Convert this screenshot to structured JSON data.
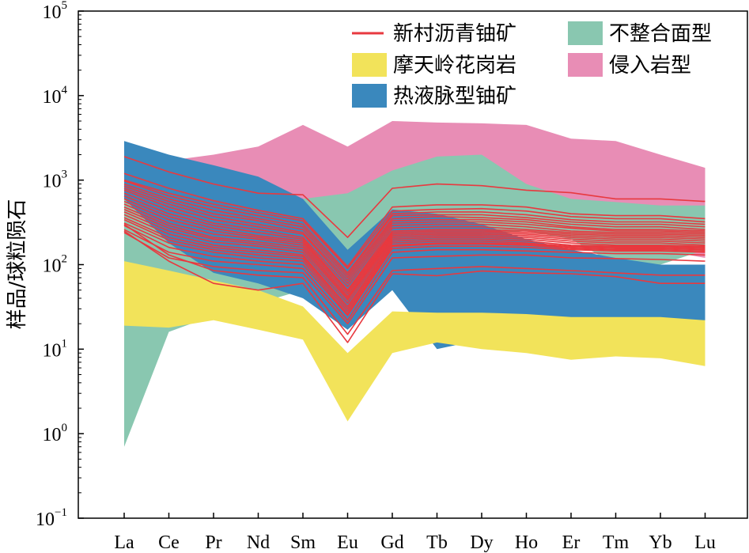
{
  "chart_data": {
    "type": "line",
    "title": "",
    "xlabel": "",
    "ylabel": "样品/球粒陨石",
    "yscale": "log",
    "ylim": [
      0.1,
      100000
    ],
    "y_ticks": [
      {
        "value": 0.1,
        "base": "10",
        "exp": "−1"
      },
      {
        "value": 1,
        "base": "10",
        "exp": "0"
      },
      {
        "value": 10,
        "base": "10",
        "exp": "1"
      },
      {
        "value": 100,
        "base": "10",
        "exp": "2"
      },
      {
        "value": 1000,
        "base": "10",
        "exp": "3"
      },
      {
        "value": 10000,
        "base": "10",
        "exp": "4"
      },
      {
        "value": 100000,
        "base": "10",
        "exp": "5"
      }
    ],
    "categories": [
      "La",
      "Ce",
      "Pr",
      "Nd",
      "Sm",
      "Eu",
      "Gd",
      "Tb",
      "Dy",
      "Ho",
      "Er",
      "Tm",
      "Yb",
      "Lu"
    ],
    "grid": false,
    "legend_position": "top-right",
    "legend": [
      {
        "key": "xincun",
        "label": "新村沥青铀矿",
        "kind": "line",
        "color": "#e8393f"
      },
      {
        "key": "unconf",
        "label": "不整合面型",
        "kind": "band",
        "color": "#89c7b0"
      },
      {
        "key": "motian",
        "label": "摩天岭花岗岩",
        "kind": "band",
        "color": "#f2e35a"
      },
      {
        "key": "intrusion",
        "label": "侵入岩型",
        "kind": "band",
        "color": "#e88db5"
      },
      {
        "key": "hydro",
        "label": "热液脉型铀矿",
        "kind": "band",
        "color": "#3a88bd"
      }
    ],
    "bands": [
      {
        "key": "intrusion",
        "color": "#e88db5",
        "upper": [
          1900,
          1700,
          2000,
          2500,
          4500,
          2500,
          5000,
          4800,
          4700,
          4500,
          3100,
          2900,
          2000,
          1400
        ],
        "lower": [
          190,
          250,
          300,
          350,
          400,
          300,
          600,
          600,
          400,
          350,
          250,
          200,
          150,
          120
        ]
      },
      {
        "key": "unconf",
        "color": "#89c7b0",
        "upper": [
          1000,
          700,
          700,
          650,
          600,
          700,
          1300,
          1900,
          2000,
          900,
          600,
          550,
          500,
          500
        ],
        "lower": [
          0.7,
          16,
          25,
          35,
          50,
          70,
          100,
          150,
          220,
          250,
          200,
          100,
          100,
          150
        ]
      },
      {
        "key": "hydro",
        "color": "#3a88bd",
        "upper": [
          2900,
          2000,
          1500,
          1100,
          600,
          150,
          450,
          400,
          300,
          200,
          150,
          120,
          100,
          100
        ],
        "lower": [
          600,
          180,
          80,
          60,
          40,
          17,
          50,
          10,
          13,
          15,
          20,
          20,
          20,
          20
        ]
      },
      {
        "key": "motian",
        "color": "#f2e35a",
        "upper": [
          110,
          85,
          65,
          50,
          32,
          9,
          28,
          27,
          27,
          26,
          24,
          24,
          24,
          22
        ],
        "lower": [
          19,
          18,
          22,
          17,
          13,
          1.4,
          9,
          12,
          10,
          9,
          7.5,
          8.2,
          7.8,
          6.3
        ]
      }
    ],
    "series": [
      {
        "values": [
          1900,
          1250,
          900,
          700,
          670,
          210,
          800,
          900,
          860,
          760,
          710,
          600,
          600,
          560
        ]
      },
      {
        "values": [
          1200,
          800,
          570,
          440,
          350,
          95,
          480,
          510,
          510,
          480,
          400,
          380,
          380,
          350
        ]
      },
      {
        "values": [
          1000,
          700,
          520,
          410,
          330,
          90,
          430,
          450,
          460,
          430,
          370,
          350,
          350,
          320
        ]
      },
      {
        "values": [
          980,
          650,
          480,
          380,
          300,
          80,
          400,
          420,
          420,
          390,
          340,
          320,
          320,
          300
        ]
      },
      {
        "values": [
          900,
          600,
          440,
          350,
          280,
          75,
          380,
          390,
          390,
          360,
          320,
          300,
          300,
          280
        ]
      },
      {
        "values": [
          850,
          560,
          400,
          330,
          260,
          70,
          350,
          370,
          360,
          340,
          300,
          280,
          280,
          260
        ]
      },
      {
        "values": [
          800,
          520,
          370,
          300,
          240,
          65,
          330,
          340,
          340,
          320,
          280,
          260,
          260,
          250
        ]
      },
      {
        "values": [
          760,
          480,
          340,
          280,
          230,
          60,
          310,
          320,
          320,
          300,
          270,
          250,
          250,
          240
        ]
      },
      {
        "values": [
          700,
          440,
          310,
          260,
          210,
          55,
          290,
          300,
          300,
          280,
          250,
          240,
          240,
          230
        ]
      },
      {
        "values": [
          650,
          400,
          290,
          240,
          200,
          50,
          270,
          280,
          280,
          260,
          240,
          230,
          230,
          220
        ]
      },
      {
        "values": [
          600,
          370,
          270,
          220,
          190,
          48,
          250,
          260,
          260,
          250,
          230,
          220,
          220,
          210
        ]
      },
      {
        "values": [
          560,
          340,
          250,
          210,
          180,
          45,
          240,
          250,
          250,
          240,
          220,
          210,
          210,
          200
        ]
      },
      {
        "values": [
          520,
          310,
          230,
          200,
          170,
          42,
          230,
          240,
          240,
          230,
          210,
          200,
          200,
          190
        ]
      },
      {
        "values": [
          480,
          290,
          210,
          185,
          160,
          40,
          220,
          230,
          230,
          220,
          200,
          190,
          190,
          180
        ]
      },
      {
        "values": [
          450,
          270,
          200,
          175,
          150,
          38,
          210,
          220,
          220,
          210,
          190,
          180,
          180,
          170
        ]
      },
      {
        "values": [
          420,
          250,
          185,
          165,
          140,
          35,
          200,
          210,
          210,
          200,
          180,
          170,
          170,
          165
        ]
      },
      {
        "values": [
          390,
          230,
          170,
          150,
          130,
          32,
          190,
          200,
          200,
          190,
          170,
          165,
          165,
          160
        ]
      },
      {
        "values": [
          360,
          210,
          160,
          140,
          125,
          30,
          180,
          190,
          190,
          180,
          165,
          160,
          160,
          155
        ]
      },
      {
        "values": [
          340,
          195,
          150,
          130,
          118,
          28,
          170,
          180,
          180,
          175,
          160,
          155,
          155,
          150
        ]
      },
      {
        "values": [
          310,
          180,
          140,
          120,
          110,
          26,
          165,
          175,
          175,
          170,
          155,
          150,
          150,
          145
        ]
      },
      {
        "values": [
          290,
          160,
          125,
          110,
          100,
          25,
          155,
          165,
          165,
          160,
          150,
          145,
          145,
          140
        ]
      },
      {
        "values": [
          260,
          140,
          110,
          100,
          90,
          22,
          140,
          150,
          150,
          145,
          140,
          135,
          135,
          130
        ]
      },
      {
        "values": [
          240,
          120,
          95,
          85,
          80,
          20,
          120,
          125,
          130,
          130,
          120,
          118,
          115,
          110
        ]
      },
      {
        "values": [
          300,
          130,
          85,
          75,
          70,
          15,
          85,
          90,
          95,
          90,
          85,
          80,
          75,
          75
        ]
      },
      {
        "values": [
          250,
          110,
          60,
          50,
          60,
          12,
          78,
          74,
          84,
          80,
          78,
          72,
          60,
          60
        ]
      }
    ]
  }
}
